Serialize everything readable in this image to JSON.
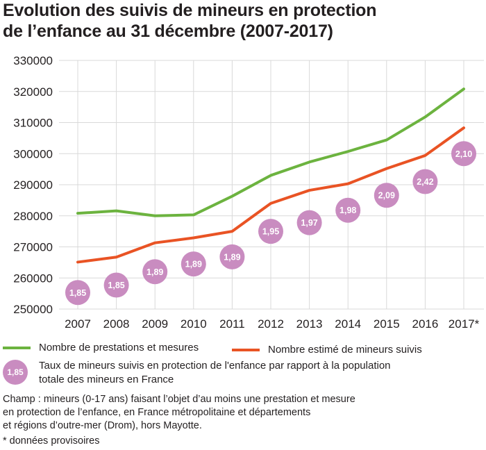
{
  "title_line1": "Evolution des suivis de mineurs en protection",
  "title_line2": "de l’enfance au 31 décembre (2007-2017)",
  "chart_data": {
    "type": "line",
    "categories": [
      "2007",
      "2008",
      "2009",
      "2010",
      "2011",
      "2012",
      "2013",
      "2014",
      "2015",
      "2016",
      "2017*"
    ],
    "ylim": [
      250000,
      330000
    ],
    "yticks": [
      "250000",
      "260000",
      "270000",
      "280000",
      "290000",
      "300000",
      "310000",
      "320000",
      "330000"
    ],
    "series": [
      {
        "name": "Nombre de prestations et mesures",
        "color": "#6cb33f",
        "values": [
          280800,
          281600,
          280000,
          280300,
          286300,
          293000,
          297300,
          300700,
          304400,
          311800,
          320800
        ]
      },
      {
        "name": "Nombre estimé de mineurs suivis",
        "color": "#e95324",
        "values": [
          265100,
          266700,
          271300,
          272900,
          275000,
          284000,
          288200,
          290300,
          295200,
          299400,
          308300
        ]
      }
    ],
    "rate_labels": [
      "1,85",
      "1,85",
      "1,89",
      "1,89",
      "1,89",
      "1,95",
      "1,97",
      "1,98",
      "2,09",
      "2,42",
      "2,10"
    ],
    "rate_positions": [
      255300,
      257700,
      262000,
      264500,
      266800,
      275000,
      277800,
      281800,
      286600,
      291000,
      300000
    ],
    "bubble_color": "#c98cc0"
  },
  "legend": {
    "series1": "Nombre de prestations et mesures",
    "series2": "Nombre estimé de mineurs suivis",
    "bubble_value": "1,85",
    "bubble_line1": "Taux de mineurs suivis en protection de l'enfance par rapport à la population",
    "bubble_line2": "totale des mineurs en France"
  },
  "notes": {
    "champ1": "Champ : mineurs (0-17 ans) faisant l’objet d’au moins une prestation et mesure",
    "champ2": "en protection de l’enfance, en France métropolitaine et départements",
    "champ3": "et régions d’outre-mer (Drom), hors Mayotte.",
    "provisional": "* données provisoires"
  }
}
